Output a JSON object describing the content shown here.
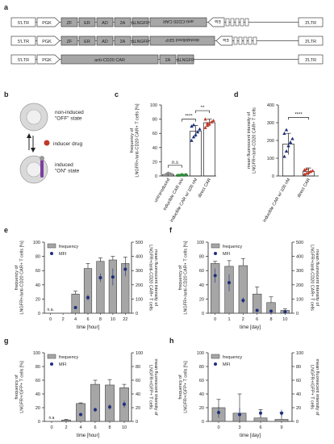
{
  "panel_labels": {
    "a": "a",
    "b": "b",
    "c": "c",
    "d": "d",
    "e": "e",
    "f": "f",
    "g": "g",
    "h": "h"
  },
  "constructs": [
    {
      "blocks": [
        {
          "t": "ltr",
          "label": "5'LTR"
        },
        {
          "t": "promoter",
          "label": "PGK"
        },
        {
          "t": "box",
          "label": "ZF"
        },
        {
          "t": "box",
          "label": "ER"
        },
        {
          "t": "box",
          "label": "AD"
        },
        {
          "t": "box",
          "label": "2A"
        },
        {
          "t": "box",
          "label": "ΔLNGFR"
        },
        {
          "t": "revbox",
          "label": "anti-CD20 CAR"
        },
        {
          "t": "revpromoter",
          "label": "Ela"
        },
        {
          "t": "zf_sites",
          "label": ""
        },
        {
          "t": "ltr",
          "label": "3'LTR"
        }
      ]
    },
    {
      "blocks": [
        {
          "t": "ltr",
          "label": "5'LTR"
        },
        {
          "t": "promoter",
          "label": "PGK"
        },
        {
          "t": "box",
          "label": "ZF"
        },
        {
          "t": "box",
          "label": "ER"
        },
        {
          "t": "box",
          "label": "AD"
        },
        {
          "t": "box",
          "label": "2A"
        },
        {
          "t": "box",
          "label": "ΔLNGFR"
        },
        {
          "t": "revbox",
          "label": "destabilized GFP"
        },
        {
          "t": "revpromoter",
          "label": "Ela"
        },
        {
          "t": "zf_sites",
          "label": ""
        },
        {
          "t": "ltr",
          "label": "3'LTR"
        }
      ]
    },
    {
      "blocks": [
        {
          "t": "ltr",
          "label": "5'LTR"
        },
        {
          "t": "promoter",
          "label": "PGK"
        },
        {
          "t": "box",
          "label": "anti-CD20 CAR"
        },
        {
          "t": "box",
          "label": "2A"
        },
        {
          "t": "box",
          "label": "ΔLNGFR"
        },
        {
          "t": "ltr",
          "label": "3'LTR"
        }
      ]
    }
  ],
  "schematic": {
    "off_label": "non-induced\n\"OFF\" state",
    "drug_label": "inducer drug",
    "on_label": "induced\n\"ON\" state",
    "colors": {
      "cell": "#d9d9d9",
      "drug": "#c0392b",
      "receptor": "#7b3fa0"
    }
  },
  "chart_data": [
    {
      "id": "c",
      "type": "scatter",
      "ylabel": "frequency of\nLNGFR+/anti-CD20 CAR+ T cells [%]",
      "ylim": [
        0,
        100
      ],
      "yticks": [
        0,
        20,
        40,
        60,
        80,
        100
      ],
      "categories": [
        "untransduced",
        "inducible CAR w/o",
        "inducible CAR w/ 100 nM",
        "direct CAR"
      ],
      "means": [
        2,
        1.5,
        63,
        75
      ],
      "sd": [
        2,
        1,
        8,
        5
      ],
      "points": [
        [
          1,
          2,
          4,
          3,
          2
        ],
        [
          1,
          1,
          2,
          1,
          2,
          1
        ],
        [
          50,
          55,
          58,
          62,
          66,
          70,
          72
        ],
        [
          68,
          71,
          73,
          76,
          78,
          80,
          74
        ]
      ],
      "colors": [
        "#8c8c8c",
        "#2e8b3a",
        "#1f2e7a",
        "#c0392b"
      ],
      "markers": [
        "circle",
        "circle",
        "triangle",
        "triangle"
      ],
      "sig": [
        {
          "from": 0,
          "to": 1,
          "label": "n.s",
          "y": 15
        },
        {
          "from": 1,
          "to": 2,
          "label": "****",
          "y": 80
        },
        {
          "from": 2,
          "to": 3,
          "label": "**",
          "y": 92
        }
      ]
    },
    {
      "id": "d",
      "type": "scatter",
      "ylabel": "mean fluorescent intensity of\nLNGFR+/anti-CD20 CAR+ T cells",
      "ylim": [
        0,
        400
      ],
      "yticks": [
        0,
        100,
        200,
        300,
        400
      ],
      "categories": [
        "inducible CAR w/ 100 nM",
        "direct CAR"
      ],
      "means": [
        180,
        25
      ],
      "sd": [
        60,
        20
      ],
      "points": [
        [
          110,
          140,
          170,
          190,
          210,
          240,
          260
        ],
        [
          10,
          15,
          20,
          25,
          30,
          35,
          40
        ]
      ],
      "colors": [
        "#1f2e7a",
        "#c0392b"
      ],
      "markers": [
        "triangle",
        "triangle"
      ],
      "sig": [
        {
          "from": 0,
          "to": 1,
          "label": "****",
          "y": 330
        }
      ]
    },
    {
      "id": "e",
      "type": "bar",
      "xlabel": "time [hour]",
      "ylabel": "frequency of\nLNGFR+/anti-CD20 CAR+ T cells [%]",
      "y2label": "mean fluorescent intensity of\nLNGFR+/anti-CD20 CAR+ T cells",
      "categories": [
        "0",
        "2",
        "4",
        "6",
        "8",
        "10",
        "22"
      ],
      "ylim": [
        0,
        100
      ],
      "yticks": [
        0,
        20,
        40,
        60,
        80,
        100
      ],
      "y2lim": [
        0,
        500
      ],
      "y2ticks": [
        0,
        100,
        200,
        300,
        400,
        500
      ],
      "series": [
        {
          "name": "frequency",
          "values": [
            0,
            0,
            27,
            63,
            73,
            75,
            70
          ],
          "err": [
            0,
            0,
            4,
            7,
            5,
            5,
            9
          ]
        },
        {
          "name": "MFI",
          "values": [
            null,
            null,
            40,
            110,
            250,
            255,
            310
          ],
          "err": [
            0,
            0,
            10,
            20,
            30,
            60,
            50
          ]
        }
      ],
      "na": [
        0
      ],
      "na_label": "n.a."
    },
    {
      "id": "f",
      "type": "bar",
      "xlabel": "time [day]",
      "ylabel": "frequency of\nLNGFR+/anti-CD20 CAR+ T cells [%]",
      "y2label": "mean fluorescent intensity of\nLNGFR+/anti-CD20 CAR+ T cells",
      "categories": [
        "0",
        "1",
        "2",
        "6",
        "8",
        "10"
      ],
      "ylim": [
        0,
        100
      ],
      "yticks": [
        0,
        20,
        40,
        60,
        80,
        100
      ],
      "y2lim": [
        0,
        500
      ],
      "y2ticks": [
        0,
        100,
        200,
        300,
        400,
        500
      ],
      "series": [
        {
          "name": "frequency",
          "values": [
            70,
            66,
            67,
            27,
            15,
            4
          ],
          "err": [
            3,
            8,
            10,
            10,
            8,
            2
          ]
        },
        {
          "name": "MFI",
          "values": [
            265,
            215,
            90,
            20,
            15,
            10
          ],
          "err": [
            50,
            60,
            20,
            5,
            5,
            3
          ]
        }
      ]
    },
    {
      "id": "g",
      "type": "bar",
      "xlabel": "time [hour]",
      "ylabel": "frequency of\nLNGFR+/GFP+ T cells [%]",
      "y2label": "mean fluorescent intensity of\nLNGFR+/GFP+ T cells",
      "categories": [
        "0",
        "2",
        "4",
        "6",
        "8",
        "10"
      ],
      "ylim": [
        0,
        100
      ],
      "yticks": [
        0,
        20,
        40,
        60,
        80,
        100
      ],
      "y2lim": [
        0,
        100
      ],
      "y2ticks": [
        0,
        20,
        40,
        60,
        80,
        100
      ],
      "series": [
        {
          "name": "frequency",
          "values": [
            0,
            2,
            26,
            54,
            53,
            49
          ],
          "err": [
            0,
            1,
            1,
            6,
            8,
            5
          ]
        },
        {
          "name": "MFI",
          "values": [
            null,
            null,
            10,
            17,
            21,
            25
          ],
          "err": [
            0,
            0,
            2,
            3,
            4,
            5
          ]
        }
      ],
      "na": [
        0
      ],
      "na_label": "n.a"
    },
    {
      "id": "h",
      "type": "bar",
      "xlabel": "time [day]",
      "ylabel": "frequency of\nLNGFR+/GFP+ T cells [%]",
      "y2label": "mean fluorescent intensity of\nLNGFR+/GFP+ T cells",
      "categories": [
        "0",
        "3",
        "6",
        "9"
      ],
      "ylim": [
        0,
        100
      ],
      "yticks": [
        0,
        20,
        40,
        60,
        80,
        100
      ],
      "y2lim": [
        0,
        100
      ],
      "y2ticks": [
        0,
        20,
        40,
        60,
        80,
        100
      ],
      "series": [
        {
          "name": "frequency",
          "values": [
            20,
            12,
            5,
            3
          ],
          "err": [
            12,
            28,
            12,
            10
          ]
        },
        {
          "name": "MFI",
          "values": [
            13,
            10,
            12,
            12
          ],
          "err": [
            8,
            10,
            6,
            5
          ]
        }
      ]
    }
  ],
  "colors": {
    "bar": "#a6a6a6",
    "mfi": "#1f2e7a",
    "box": "#a6a6a6",
    "ltr": "#ffffff"
  }
}
